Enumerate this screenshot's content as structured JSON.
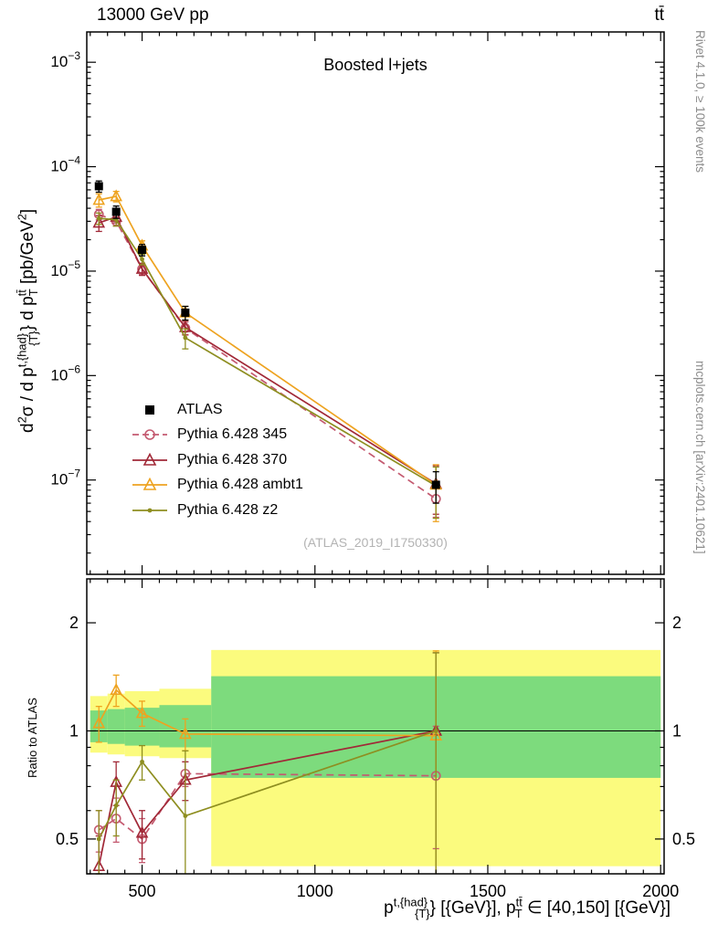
{
  "header": {
    "title_left": "13000 GeV pp",
    "title_right": "tt̄"
  },
  "side_texts": {
    "top": "Rivet 4.1.0, ≥ 100k events",
    "bottom": "mcplots.cern.ch [arXiv:2401.10621]"
  },
  "chart_data": {
    "type": "line",
    "annotation": "Boosted l+jets",
    "watermark": "(ATLAS_2019_I1750330)",
    "ratio_ylabel": "Ratio to ATLAS",
    "x_label_segments": [
      {
        "t": "p"
      },
      {
        "t": "t,{had}",
        "s": "sup"
      },
      {
        "t": "{T}",
        "s": "sub",
        "dx": -14
      },
      {
        "t": "} [{GeV}], p"
      },
      {
        "t": "tt̄",
        "s": "sup"
      },
      {
        "t": "T",
        "s": "sub",
        "dx": -8
      },
      {
        "t": " ∈ [40,150] [{GeV}]"
      }
    ],
    "y_label_segments": [
      {
        "t": "d"
      },
      {
        "t": "2",
        "s": "sup"
      },
      {
        "t": "σ / d p"
      },
      {
        "t": "t,{had}",
        "s": "sup"
      },
      {
        "t": "{T}",
        "s": "sub",
        "dx": -14
      },
      {
        "t": "} d p"
      },
      {
        "t": "tt̄",
        "s": "sup"
      },
      {
        "t": "T",
        "s": "sub",
        "dx": -7
      },
      {
        "t": " [pb/GeV"
      },
      {
        "t": "2",
        "s": "sup"
      },
      {
        "t": "]"
      }
    ],
    "x_axis": {
      "min": 340,
      "max": 2010,
      "major_ticks": [
        500,
        1000,
        1500,
        2000
      ],
      "minor_step": 50,
      "tick_labels": [
        "500",
        "1000",
        "1500",
        "2000"
      ]
    },
    "main_y_axis": {
      "scale": "log",
      "min": 1.25e-08,
      "max": 0.00195,
      "labeled_decades": [
        -3,
        -4,
        -5,
        -6,
        -7
      ]
    },
    "ratio_y_axis": {
      "scale": "log",
      "min": 0.4,
      "max": 2.65,
      "labeled_ticks": [
        2,
        1,
        0.5
      ],
      "minor_ticks": [
        0.4,
        0.6,
        0.7,
        0.8,
        0.9
      ]
    },
    "bin_centers": [
      375,
      425,
      500,
      625,
      1350
    ],
    "bin_edges": [
      350,
      400,
      450,
      550,
      700,
      2000
    ],
    "series": [
      {
        "id": "atlas",
        "name": "ATLAS",
        "color": "#000000",
        "marker": "square-filled",
        "line": "none",
        "y": [
          6.5e-05,
          3.7e-05,
          1.6e-05,
          4e-06,
          9e-08
        ],
        "yerr": [
          8e-06,
          5e-06,
          2e-06,
          6e-07,
          3e-08
        ]
      },
      {
        "id": "pythia-345",
        "name": "Pythia 6.428 345",
        "color": "#c45a70",
        "marker": "circle-open",
        "line": "dashed",
        "y": [
          3.5e-05,
          3e-05,
          1.05e-05,
          2.85e-06,
          6.6e-08
        ],
        "yerr": [
          4e-06,
          3e-06,
          1.2e-06,
          4e-07,
          2.2e-08
        ],
        "ratio": [
          0.53,
          0.57,
          0.5,
          0.76,
          0.75
        ],
        "ratio_err": [
          0.07,
          0.08,
          0.07,
          0.06,
          0.28
        ]
      },
      {
        "id": "pythia-370",
        "name": "Pythia 6.428 370",
        "color": "#a12837",
        "marker": "triangle-open",
        "line": "solid",
        "y": [
          2.9e-05,
          3.3e-05,
          1.05e-05,
          2.9e-06,
          9.2e-08
        ],
        "yerr": [
          5e-06,
          4e-06,
          1.4e-06,
          4.5e-07,
          4.5e-08
        ],
        "ratio": [
          0.42,
          0.72,
          0.52,
          0.73,
          1.0
        ],
        "ratio_err": [
          0.09,
          0.1,
          0.08,
          0.09,
          0.65
        ]
      },
      {
        "id": "pythia-ambt1",
        "name": "Pythia 6.428 ambt1",
        "color": "#eea320",
        "marker": "triangle-open",
        "line": "solid",
        "y": [
          4.8e-05,
          5.2e-05,
          1.75e-05,
          4e-06,
          9e-08
        ],
        "yerr": [
          7e-06,
          6e-06,
          2e-06,
          6e-07,
          5e-08
        ],
        "ratio": [
          1.05,
          1.3,
          1.12,
          0.98,
          0.97
        ],
        "ratio_err": [
          0.12,
          0.13,
          0.09,
          0.1,
          0.7
        ]
      },
      {
        "id": "pythia-z2",
        "name": "Pythia 6.428 z2",
        "color": "#8e8e20",
        "marker": "dot",
        "line": "solid",
        "y": [
          3.2e-05,
          3.1e-05,
          1.3e-05,
          2.3e-06,
          8.8e-08
        ],
        "yerr": [
          4e-06,
          4e-06,
          1.5e-06,
          5e-07,
          4.5e-08
        ],
        "ratio": [
          0.5,
          0.62,
          0.82,
          0.58,
          1.0
        ],
        "ratio_err": [
          0.1,
          0.11,
          0.09,
          0.3,
          0.65
        ]
      }
    ],
    "bands": {
      "yellow_color": "#fbfb7e",
      "green_color": "#7ddb7d",
      "per_bin": [
        {
          "yellow": [
            0.87,
            1.25
          ],
          "green": [
            0.93,
            1.14
          ]
        },
        {
          "yellow": [
            0.86,
            1.27
          ],
          "green": [
            0.92,
            1.15
          ]
        },
        {
          "yellow": [
            0.85,
            1.29
          ],
          "green": [
            0.91,
            1.16
          ]
        },
        {
          "yellow": [
            0.84,
            1.31
          ],
          "green": [
            0.9,
            1.18
          ]
        },
        {
          "yellow": [
            0.42,
            1.68
          ],
          "green": [
            0.74,
            1.42
          ]
        }
      ]
    }
  }
}
